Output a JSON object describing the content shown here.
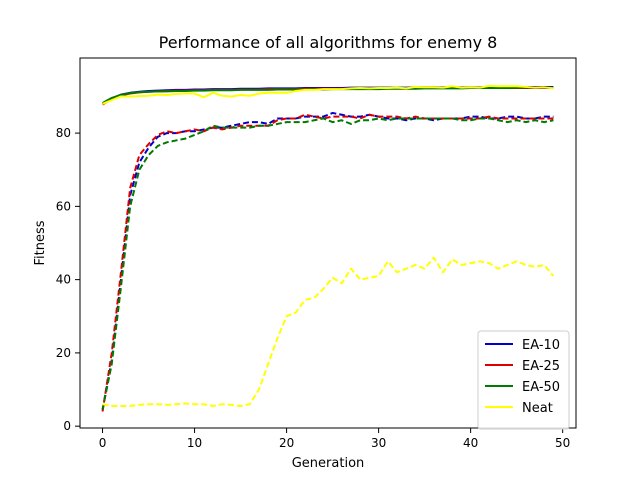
{
  "chart_data": {
    "type": "line",
    "title": "Performance of all algorithms for enemy 8",
    "xlabel": "Generation",
    "ylabel": "Fitness",
    "xlim": [
      -2.45,
      51.45
    ],
    "ylim": [
      -0.5,
      100.5
    ],
    "xticks": [
      0,
      10,
      20,
      30,
      40,
      50
    ],
    "yticks": [
      0,
      20,
      40,
      60,
      80
    ],
    "grid": false,
    "legend_position": "lower-right",
    "x": [
      0,
      1,
      2,
      3,
      4,
      5,
      6,
      7,
      8,
      9,
      10,
      11,
      12,
      13,
      14,
      15,
      16,
      17,
      18,
      19,
      20,
      21,
      22,
      23,
      24,
      25,
      26,
      27,
      28,
      29,
      30,
      31,
      32,
      33,
      34,
      35,
      36,
      37,
      38,
      39,
      40,
      41,
      42,
      43,
      44,
      45,
      46,
      47,
      48,
      49
    ],
    "series": [
      {
        "name": "EA-10",
        "color": "#0000cc",
        "max": [
          88.0,
          89.5,
          90.5,
          91.0,
          91.3,
          91.5,
          91.6,
          91.7,
          91.8,
          91.8,
          91.9,
          91.9,
          92.0,
          92.0,
          92.0,
          92.1,
          92.1,
          92.1,
          92.2,
          92.2,
          92.2,
          92.2,
          92.3,
          92.3,
          92.3,
          92.3,
          92.3,
          92.4,
          92.4,
          92.4,
          92.4,
          92.4,
          92.4,
          92.4,
          92.5,
          92.5,
          92.5,
          92.5,
          92.5,
          92.5,
          92.5,
          92.5,
          92.5,
          92.5,
          92.5,
          92.6,
          92.6,
          92.6,
          92.6,
          92.6
        ],
        "mean": [
          4.5,
          18.0,
          40.0,
          63.0,
          72.0,
          76.0,
          79.0,
          80.0,
          80.0,
          80.5,
          80.5,
          81.0,
          81.5,
          81.5,
          82.0,
          82.5,
          83.0,
          83.0,
          82.5,
          84.0,
          84.0,
          84.0,
          84.5,
          84.5,
          84.5,
          85.5,
          85.0,
          84.5,
          84.5,
          85.0,
          84.5,
          84.0,
          84.0,
          83.5,
          84.0,
          84.0,
          83.5,
          84.0,
          84.0,
          84.0,
          84.5,
          84.5,
          84.0,
          84.0,
          84.5,
          84.5,
          84.0,
          84.0,
          84.5,
          84.5
        ]
      },
      {
        "name": "EA-25",
        "color": "#dd0000",
        "max": [
          87.8,
          89.3,
          90.3,
          90.8,
          91.1,
          91.3,
          91.4,
          91.5,
          91.6,
          91.6,
          91.7,
          91.7,
          91.8,
          91.8,
          91.8,
          91.9,
          91.9,
          91.9,
          92.0,
          92.0,
          92.0,
          92.0,
          92.1,
          92.1,
          92.1,
          92.1,
          92.1,
          92.2,
          92.2,
          92.2,
          92.2,
          92.2,
          92.2,
          92.2,
          92.3,
          92.3,
          92.3,
          92.3,
          92.3,
          92.3,
          92.3,
          92.3,
          92.3,
          92.3,
          92.3,
          92.3,
          92.3,
          92.3,
          92.3,
          92.3
        ],
        "mean": [
          4.0,
          20.0,
          42.0,
          65.0,
          74.0,
          77.0,
          79.5,
          80.5,
          80.0,
          80.5,
          81.0,
          80.5,
          81.5,
          81.0,
          81.5,
          82.0,
          82.0,
          82.0,
          82.0,
          83.5,
          84.0,
          84.0,
          85.0,
          84.5,
          84.0,
          84.5,
          84.5,
          84.5,
          84.0,
          85.0,
          84.5,
          84.5,
          84.5,
          84.0,
          84.5,
          84.0,
          84.0,
          84.0,
          84.0,
          84.0,
          84.0,
          84.0,
          84.5,
          84.0,
          84.0,
          84.0,
          84.0,
          84.0,
          84.0,
          84.0
        ]
      },
      {
        "name": "EA-50",
        "color": "#007a00",
        "max": [
          88.2,
          89.6,
          90.4,
          90.9,
          91.2,
          91.3,
          91.4,
          91.4,
          91.5,
          91.5,
          91.6,
          91.6,
          91.7,
          91.7,
          91.7,
          91.8,
          91.8,
          91.8,
          91.8,
          91.9,
          91.9,
          91.9,
          91.9,
          92.0,
          91.9,
          92.0,
          92.0,
          92.0,
          92.0,
          92.0,
          92.0,
          92.1,
          92.1,
          92.1,
          92.1,
          92.2,
          92.2,
          92.2,
          92.2,
          92.2,
          92.3,
          92.3,
          92.3,
          92.3,
          92.3,
          92.4,
          92.4,
          92.4,
          92.4,
          92.4
        ],
        "mean": [
          4.5,
          17.0,
          38.0,
          60.0,
          70.0,
          74.0,
          76.5,
          77.5,
          78.0,
          78.5,
          79.5,
          80.5,
          82.0,
          81.5,
          81.5,
          81.5,
          81.5,
          82.0,
          82.0,
          82.5,
          83.0,
          83.0,
          83.0,
          83.5,
          84.0,
          83.0,
          83.5,
          82.5,
          83.5,
          83.5,
          84.0,
          83.5,
          84.0,
          84.0,
          84.0,
          84.0,
          84.0,
          84.0,
          84.0,
          83.5,
          83.5,
          84.0,
          84.0,
          83.5,
          83.0,
          83.5,
          83.0,
          83.5,
          83.0,
          83.5
        ]
      },
      {
        "name": "Neat",
        "color": "#ffff00",
        "max": [
          88.0,
          89.0,
          90.0,
          90.0,
          90.1,
          90.2,
          90.5,
          90.4,
          90.7,
          90.8,
          90.8,
          89.8,
          91.0,
          90.2,
          90.0,
          90.4,
          90.2,
          90.8,
          91.0,
          91.0,
          91.0,
          91.5,
          91.8,
          91.8,
          92.0,
          92.0,
          92.0,
          92.2,
          92.3,
          92.2,
          92.3,
          92.3,
          92.4,
          92.2,
          92.6,
          92.5,
          92.5,
          92.4,
          92.8,
          92.4,
          92.5,
          92.4,
          92.9,
          92.8,
          92.8,
          92.8,
          92.6,
          92.4,
          92.5,
          92.2
        ],
        "mean": [
          6.0,
          5.5,
          5.5,
          5.5,
          5.8,
          6.0,
          6.0,
          5.8,
          6.0,
          6.2,
          6.0,
          6.0,
          5.5,
          6.0,
          5.8,
          5.5,
          6.0,
          10.0,
          17.0,
          24.0,
          30.0,
          31.0,
          34.5,
          35.0,
          37.5,
          40.5,
          39.0,
          43.0,
          40.0,
          40.5,
          41.0,
          45.0,
          42.0,
          43.0,
          44.0,
          43.0,
          46.0,
          42.0,
          45.5,
          44.0,
          44.5,
          45.0,
          44.5,
          43.0,
          44.0,
          45.0,
          44.0,
          43.5,
          44.0,
          41.0
        ]
      }
    ]
  }
}
